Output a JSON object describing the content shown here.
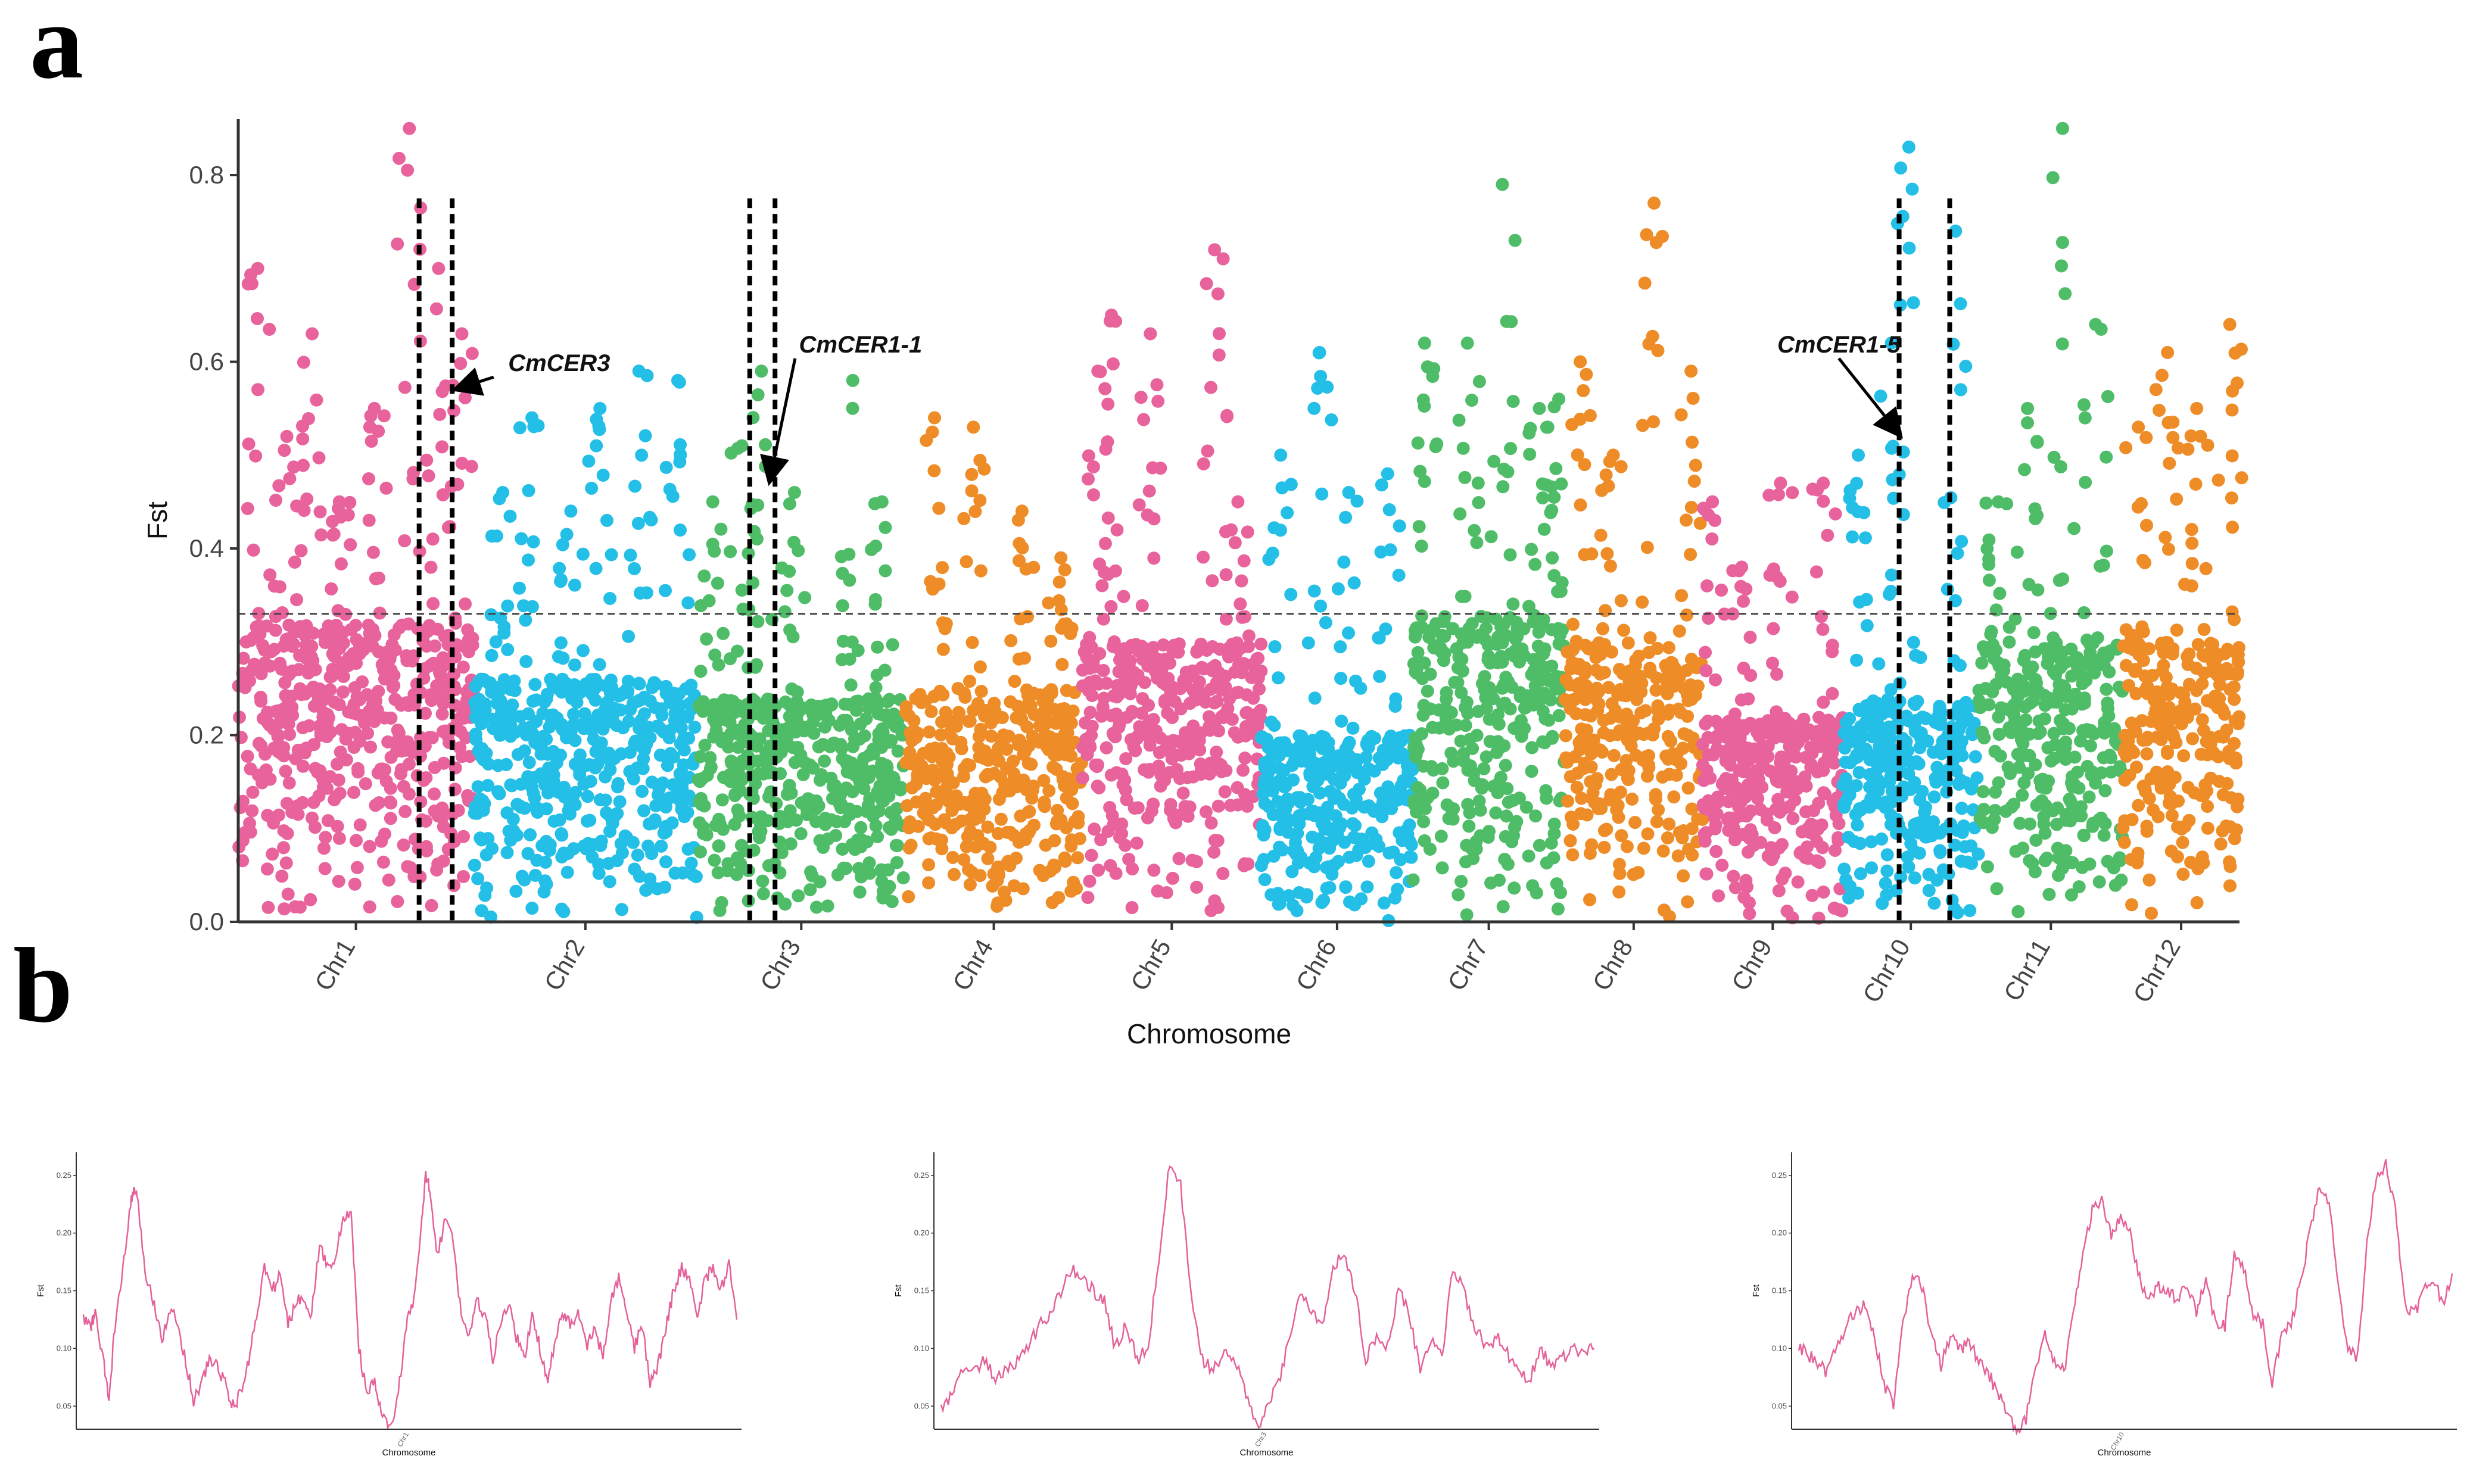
{
  "panel_labels": [
    "a",
    "b"
  ],
  "colors": {
    "pink": "#E8639B",
    "blue": "#24BFE6",
    "green": "#4FBD68",
    "orange": "#EE8D27",
    "axis": "#333333",
    "line": "#E46199"
  },
  "chart_data": [
    {
      "type": "scatter",
      "name": "manhattan",
      "title": "",
      "xlabel": "Chromosome",
      "ylabel": "Fst",
      "ylim": [
        0,
        0.86
      ],
      "yticks": [
        "0.0",
        "0.2",
        "0.4",
        "0.6",
        "0.8"
      ],
      "ytick_values": [
        0,
        0.2,
        0.4,
        0.6,
        0.8
      ],
      "threshold": 0.33,
      "chromosomes": [
        {
          "label": "Chr1",
          "start": 0.0,
          "end": 12.1,
          "color": "pink",
          "typical_max": 0.32,
          "peaks": [
            [
              1.0,
              0.7
            ],
            [
              2.5,
              0.52
            ],
            [
              3.8,
              0.63
            ],
            [
              5.2,
              0.45
            ],
            [
              7.0,
              0.55
            ],
            [
              8.8,
              0.85
            ],
            [
              10.3,
              0.7
            ],
            [
              11.5,
              0.63
            ]
          ]
        },
        {
          "label": "Chr2",
          "start": 12.1,
          "end": 23.6,
          "color": "blue",
          "typical_max": 0.26,
          "peaks": [
            [
              1.5,
              0.46
            ],
            [
              3.0,
              0.54
            ],
            [
              5.0,
              0.44
            ],
            [
              6.5,
              0.55
            ],
            [
              8.5,
              0.59
            ],
            [
              10.5,
              0.58
            ]
          ]
        },
        {
          "label": "Chr3",
          "start": 23.6,
          "end": 34.3,
          "color": "green",
          "typical_max": 0.24,
          "peaks": [
            [
              0.8,
              0.45
            ],
            [
              2.3,
              0.51
            ],
            [
              3.3,
              0.59
            ],
            [
              5.0,
              0.46
            ],
            [
              8.0,
              0.58
            ],
            [
              9.5,
              0.45
            ]
          ]
        },
        {
          "label": "Chr4",
          "start": 34.3,
          "end": 43.4,
          "color": "orange",
          "typical_max": 0.25,
          "peaks": [
            [
              1.5,
              0.54
            ],
            [
              3.5,
              0.53
            ],
            [
              6.0,
              0.44
            ],
            [
              8.0,
              0.39
            ]
          ]
        },
        {
          "label": "Chr5",
          "start": 43.4,
          "end": 52.6,
          "color": "pink",
          "typical_max": 0.3,
          "peaks": [
            [
              0.8,
              0.59
            ],
            [
              1.5,
              0.65
            ],
            [
              3.5,
              0.63
            ],
            [
              6.8,
              0.72
            ],
            [
              8.0,
              0.45
            ]
          ]
        },
        {
          "label": "Chr6",
          "start": 52.6,
          "end": 60.4,
          "color": "blue",
          "typical_max": 0.2,
          "peaks": [
            [
              1.0,
              0.5
            ],
            [
              3.0,
              0.61
            ],
            [
              4.5,
              0.46
            ],
            [
              6.5,
              0.48
            ]
          ]
        },
        {
          "label": "Chr7",
          "start": 60.4,
          "end": 68.2,
          "color": "green",
          "typical_max": 0.33,
          "peaks": [
            [
              0.6,
              0.62
            ],
            [
              2.8,
              0.62
            ],
            [
              4.6,
              0.79
            ],
            [
              6.5,
              0.55
            ],
            [
              7.5,
              0.56
            ]
          ]
        },
        {
          "label": "Chr8",
          "start": 68.2,
          "end": 75.3,
          "color": "orange",
          "typical_max": 0.3,
          "peaks": [
            [
              0.8,
              0.6
            ],
            [
              2.5,
              0.5
            ],
            [
              4.6,
              0.77
            ],
            [
              6.5,
              0.59
            ]
          ]
        },
        {
          "label": "Chr9",
          "start": 75.3,
          "end": 82.5,
          "color": "pink",
          "typical_max": 0.22,
          "peaks": [
            [
              0.5,
              0.45
            ],
            [
              2.0,
              0.38
            ],
            [
              4.0,
              0.47
            ],
            [
              6.2,
              0.47
            ]
          ]
        },
        {
          "label": "Chr10",
          "start": 82.5,
          "end": 89.5,
          "color": "blue",
          "typical_max": 0.24,
          "peaks": [
            [
              0.8,
              0.5
            ],
            [
              2.5,
              0.62
            ],
            [
              3.4,
              0.83
            ],
            [
              5.8,
              0.74
            ]
          ]
        },
        {
          "label": "Chr11",
          "start": 89.5,
          "end": 96.9,
          "color": "green",
          "typical_max": 0.3,
          "peaks": [
            [
              1.0,
              0.45
            ],
            [
              2.5,
              0.55
            ],
            [
              4.3,
              0.85
            ],
            [
              6.0,
              0.64
            ]
          ]
        },
        {
          "label": "Chr12",
          "start": 96.9,
          "end": 102.9,
          "color": "orange",
          "typical_max": 0.3,
          "peaks": [
            [
              0.8,
              0.53
            ],
            [
              2.3,
              0.61
            ],
            [
              3.8,
              0.55
            ],
            [
              5.5,
              0.64
            ]
          ]
        }
      ],
      "highlight_lines": [
        9.3,
        11.0,
        26.3,
        27.6,
        85.4,
        88.0
      ],
      "annotations": [
        {
          "text": "CmCER3",
          "x": 16.5,
          "y": 0.59,
          "point_x": 11.1,
          "point_y": 0.57
        },
        {
          "text": "CmCER1-1",
          "x": 32.0,
          "y": 0.61,
          "point_x": 27.3,
          "point_y": 0.47
        },
        {
          "text": "CmCER1-5",
          "x": 82.3,
          "y": 0.61,
          "point_x": 85.5,
          "point_y": 0.52
        }
      ]
    },
    {
      "type": "line",
      "name": "chr1-fst",
      "xlabel": "Chromosome",
      "ylabel": "Fst",
      "x_tick_label": "Chr1",
      "ylim": [
        0.03,
        0.27
      ],
      "yticks": [
        "0.05",
        "0.10",
        "0.15",
        "0.20",
        "0.25"
      ],
      "ytick_values": [
        0.05,
        0.1,
        0.15,
        0.2,
        0.25
      ],
      "keypoints": [
        [
          0,
          0.125
        ],
        [
          2,
          0.12
        ],
        [
          3,
          0.13
        ],
        [
          5,
          0.09
        ],
        [
          6.5,
          0.055
        ],
        [
          8,
          0.12
        ],
        [
          10,
          0.165
        ],
        [
          12,
          0.225
        ],
        [
          13,
          0.24
        ],
        [
          14,
          0.22
        ],
        [
          16,
          0.16
        ],
        [
          18,
          0.14
        ],
        [
          20,
          0.11
        ],
        [
          22,
          0.135
        ],
        [
          24,
          0.12
        ],
        [
          26,
          0.09
        ],
        [
          28,
          0.055
        ],
        [
          30,
          0.07
        ],
        [
          32,
          0.09
        ],
        [
          34,
          0.085
        ],
        [
          36,
          0.07
        ],
        [
          38,
          0.05
        ],
        [
          40,
          0.06
        ],
        [
          42,
          0.09
        ],
        [
          44,
          0.13
        ],
        [
          46,
          0.17
        ],
        [
          48,
          0.15
        ],
        [
          50,
          0.165
        ],
        [
          52,
          0.12
        ],
        [
          54,
          0.14
        ],
        [
          56,
          0.145
        ],
        [
          58,
          0.13
        ],
        [
          60,
          0.19
        ],
        [
          62,
          0.17
        ],
        [
          64,
          0.18
        ],
        [
          66,
          0.21
        ],
        [
          68,
          0.22
        ],
        [
          70,
          0.1
        ],
        [
          72,
          0.06
        ],
        [
          74,
          0.07
        ],
        [
          76,
          0.04
        ],
        [
          78,
          0.03
        ],
        [
          80,
          0.06
        ],
        [
          82,
          0.12
        ],
        [
          84,
          0.14
        ],
        [
          86,
          0.21
        ],
        [
          87,
          0.25
        ],
        [
          88,
          0.24
        ],
        [
          90,
          0.18
        ],
        [
          92,
          0.215
        ],
        [
          94,
          0.19
        ],
        [
          96,
          0.13
        ],
        [
          98,
          0.11
        ],
        [
          100,
          0.14
        ],
        [
          102,
          0.13
        ],
        [
          104,
          0.09
        ],
        [
          106,
          0.12
        ],
        [
          108,
          0.14
        ],
        [
          110,
          0.11
        ],
        [
          112,
          0.09
        ],
        [
          114,
          0.13
        ],
        [
          116,
          0.1
        ],
        [
          118,
          0.07
        ],
        [
          120,
          0.11
        ],
        [
          122,
          0.13
        ],
        [
          124,
          0.12
        ],
        [
          126,
          0.13
        ],
        [
          128,
          0.1
        ],
        [
          130,
          0.12
        ],
        [
          132,
          0.09
        ],
        [
          134,
          0.14
        ],
        [
          136,
          0.16
        ],
        [
          138,
          0.13
        ],
        [
          140,
          0.1
        ],
        [
          142,
          0.12
        ],
        [
          144,
          0.07
        ],
        [
          146,
          0.085
        ],
        [
          148,
          0.12
        ],
        [
          150,
          0.15
        ],
        [
          152,
          0.17
        ],
        [
          154,
          0.16
        ],
        [
          156,
          0.13
        ],
        [
          158,
          0.16
        ],
        [
          160,
          0.17
        ],
        [
          162,
          0.15
        ],
        [
          164,
          0.175
        ],
        [
          166,
          0.125
        ]
      ]
    },
    {
      "type": "line",
      "name": "chr3-fst",
      "xlabel": "Chromosome",
      "ylabel": "Fst",
      "x_tick_label": "Chr3",
      "ylim": [
        0.03,
        0.27
      ],
      "yticks": [
        "0.05",
        "0.10",
        "0.15",
        "0.20",
        "0.25"
      ],
      "ytick_values": [
        0.05,
        0.1,
        0.15,
        0.2,
        0.25
      ],
      "keypoints": [
        [
          0,
          0.05
        ],
        [
          2,
          0.06
        ],
        [
          4,
          0.085
        ],
        [
          6,
          0.08
        ],
        [
          8,
          0.09
        ],
        [
          10,
          0.075
        ],
        [
          12,
          0.08
        ],
        [
          14,
          0.09
        ],
        [
          16,
          0.1
        ],
        [
          18,
          0.12
        ],
        [
          20,
          0.13
        ],
        [
          22,
          0.15
        ],
        [
          24,
          0.17
        ],
        [
          26,
          0.16
        ],
        [
          28,
          0.15
        ],
        [
          30,
          0.14
        ],
        [
          32,
          0.1
        ],
        [
          34,
          0.12
        ],
        [
          36,
          0.09
        ],
        [
          38,
          0.1
        ],
        [
          40,
          0.18
        ],
        [
          42,
          0.26
        ],
        [
          44,
          0.24
        ],
        [
          46,
          0.14
        ],
        [
          48,
          0.09
        ],
        [
          50,
          0.08
        ],
        [
          52,
          0.1
        ],
        [
          54,
          0.09
        ],
        [
          56,
          0.06
        ],
        [
          58,
          0.03
        ],
        [
          60,
          0.05
        ],
        [
          62,
          0.07
        ],
        [
          64,
          0.11
        ],
        [
          66,
          0.15
        ],
        [
          68,
          0.13
        ],
        [
          70,
          0.12
        ],
        [
          72,
          0.17
        ],
        [
          74,
          0.185
        ],
        [
          76,
          0.15
        ],
        [
          78,
          0.09
        ],
        [
          80,
          0.11
        ],
        [
          82,
          0.1
        ],
        [
          84,
          0.15
        ],
        [
          86,
          0.13
        ],
        [
          88,
          0.08
        ],
        [
          90,
          0.11
        ],
        [
          92,
          0.09
        ],
        [
          94,
          0.17
        ],
        [
          96,
          0.15
        ],
        [
          98,
          0.12
        ],
        [
          100,
          0.1
        ],
        [
          102,
          0.11
        ],
        [
          104,
          0.095
        ],
        [
          106,
          0.08
        ],
        [
          108,
          0.07
        ],
        [
          110,
          0.1
        ],
        [
          112,
          0.085
        ],
        [
          114,
          0.09
        ],
        [
          116,
          0.1
        ],
        [
          118,
          0.095
        ],
        [
          120,
          0.1
        ]
      ]
    },
    {
      "type": "line",
      "name": "chr10-fst",
      "xlabel": "Chromosome",
      "ylabel": "Fst",
      "x_tick_label": "Chr10",
      "ylim": [
        0.03,
        0.27
      ],
      "yticks": [
        "0.05",
        "0.10",
        "0.15",
        "0.20",
        "0.25"
      ],
      "ytick_values": [
        0.05,
        0.1,
        0.15,
        0.2,
        0.25
      ],
      "keypoints": [
        [
          0,
          0.1
        ],
        [
          2,
          0.095
        ],
        [
          4,
          0.085
        ],
        [
          6,
          0.08
        ],
        [
          8,
          0.1
        ],
        [
          10,
          0.12
        ],
        [
          12,
          0.13
        ],
        [
          14,
          0.14
        ],
        [
          16,
          0.11
        ],
        [
          18,
          0.07
        ],
        [
          20,
          0.05
        ],
        [
          22,
          0.12
        ],
        [
          24,
          0.16
        ],
        [
          26,
          0.155
        ],
        [
          28,
          0.11
        ],
        [
          30,
          0.085
        ],
        [
          32,
          0.11
        ],
        [
          34,
          0.1
        ],
        [
          36,
          0.105
        ],
        [
          38,
          0.09
        ],
        [
          40,
          0.08
        ],
        [
          42,
          0.06
        ],
        [
          44,
          0.045
        ],
        [
          46,
          0.03
        ],
        [
          48,
          0.04
        ],
        [
          50,
          0.08
        ],
        [
          52,
          0.11
        ],
        [
          54,
          0.09
        ],
        [
          56,
          0.08
        ],
        [
          58,
          0.13
        ],
        [
          60,
          0.18
        ],
        [
          62,
          0.22
        ],
        [
          64,
          0.23
        ],
        [
          66,
          0.2
        ],
        [
          68,
          0.215
        ],
        [
          70,
          0.2
        ],
        [
          72,
          0.16
        ],
        [
          74,
          0.14
        ],
        [
          76,
          0.155
        ],
        [
          78,
          0.15
        ],
        [
          80,
          0.14
        ],
        [
          82,
          0.155
        ],
        [
          84,
          0.13
        ],
        [
          86,
          0.16
        ],
        [
          88,
          0.12
        ],
        [
          90,
          0.12
        ],
        [
          92,
          0.18
        ],
        [
          94,
          0.17
        ],
        [
          96,
          0.13
        ],
        [
          98,
          0.12
        ],
        [
          100,
          0.07
        ],
        [
          102,
          0.11
        ],
        [
          104,
          0.12
        ],
        [
          106,
          0.16
        ],
        [
          108,
          0.2
        ],
        [
          110,
          0.24
        ],
        [
          112,
          0.23
        ],
        [
          114,
          0.15
        ],
        [
          116,
          0.1
        ],
        [
          118,
          0.09
        ],
        [
          120,
          0.19
        ],
        [
          122,
          0.25
        ],
        [
          124,
          0.26
        ],
        [
          126,
          0.22
        ],
        [
          128,
          0.14
        ],
        [
          130,
          0.13
        ],
        [
          132,
          0.15
        ],
        [
          134,
          0.16
        ],
        [
          136,
          0.14
        ],
        [
          138,
          0.165
        ]
      ]
    }
  ]
}
